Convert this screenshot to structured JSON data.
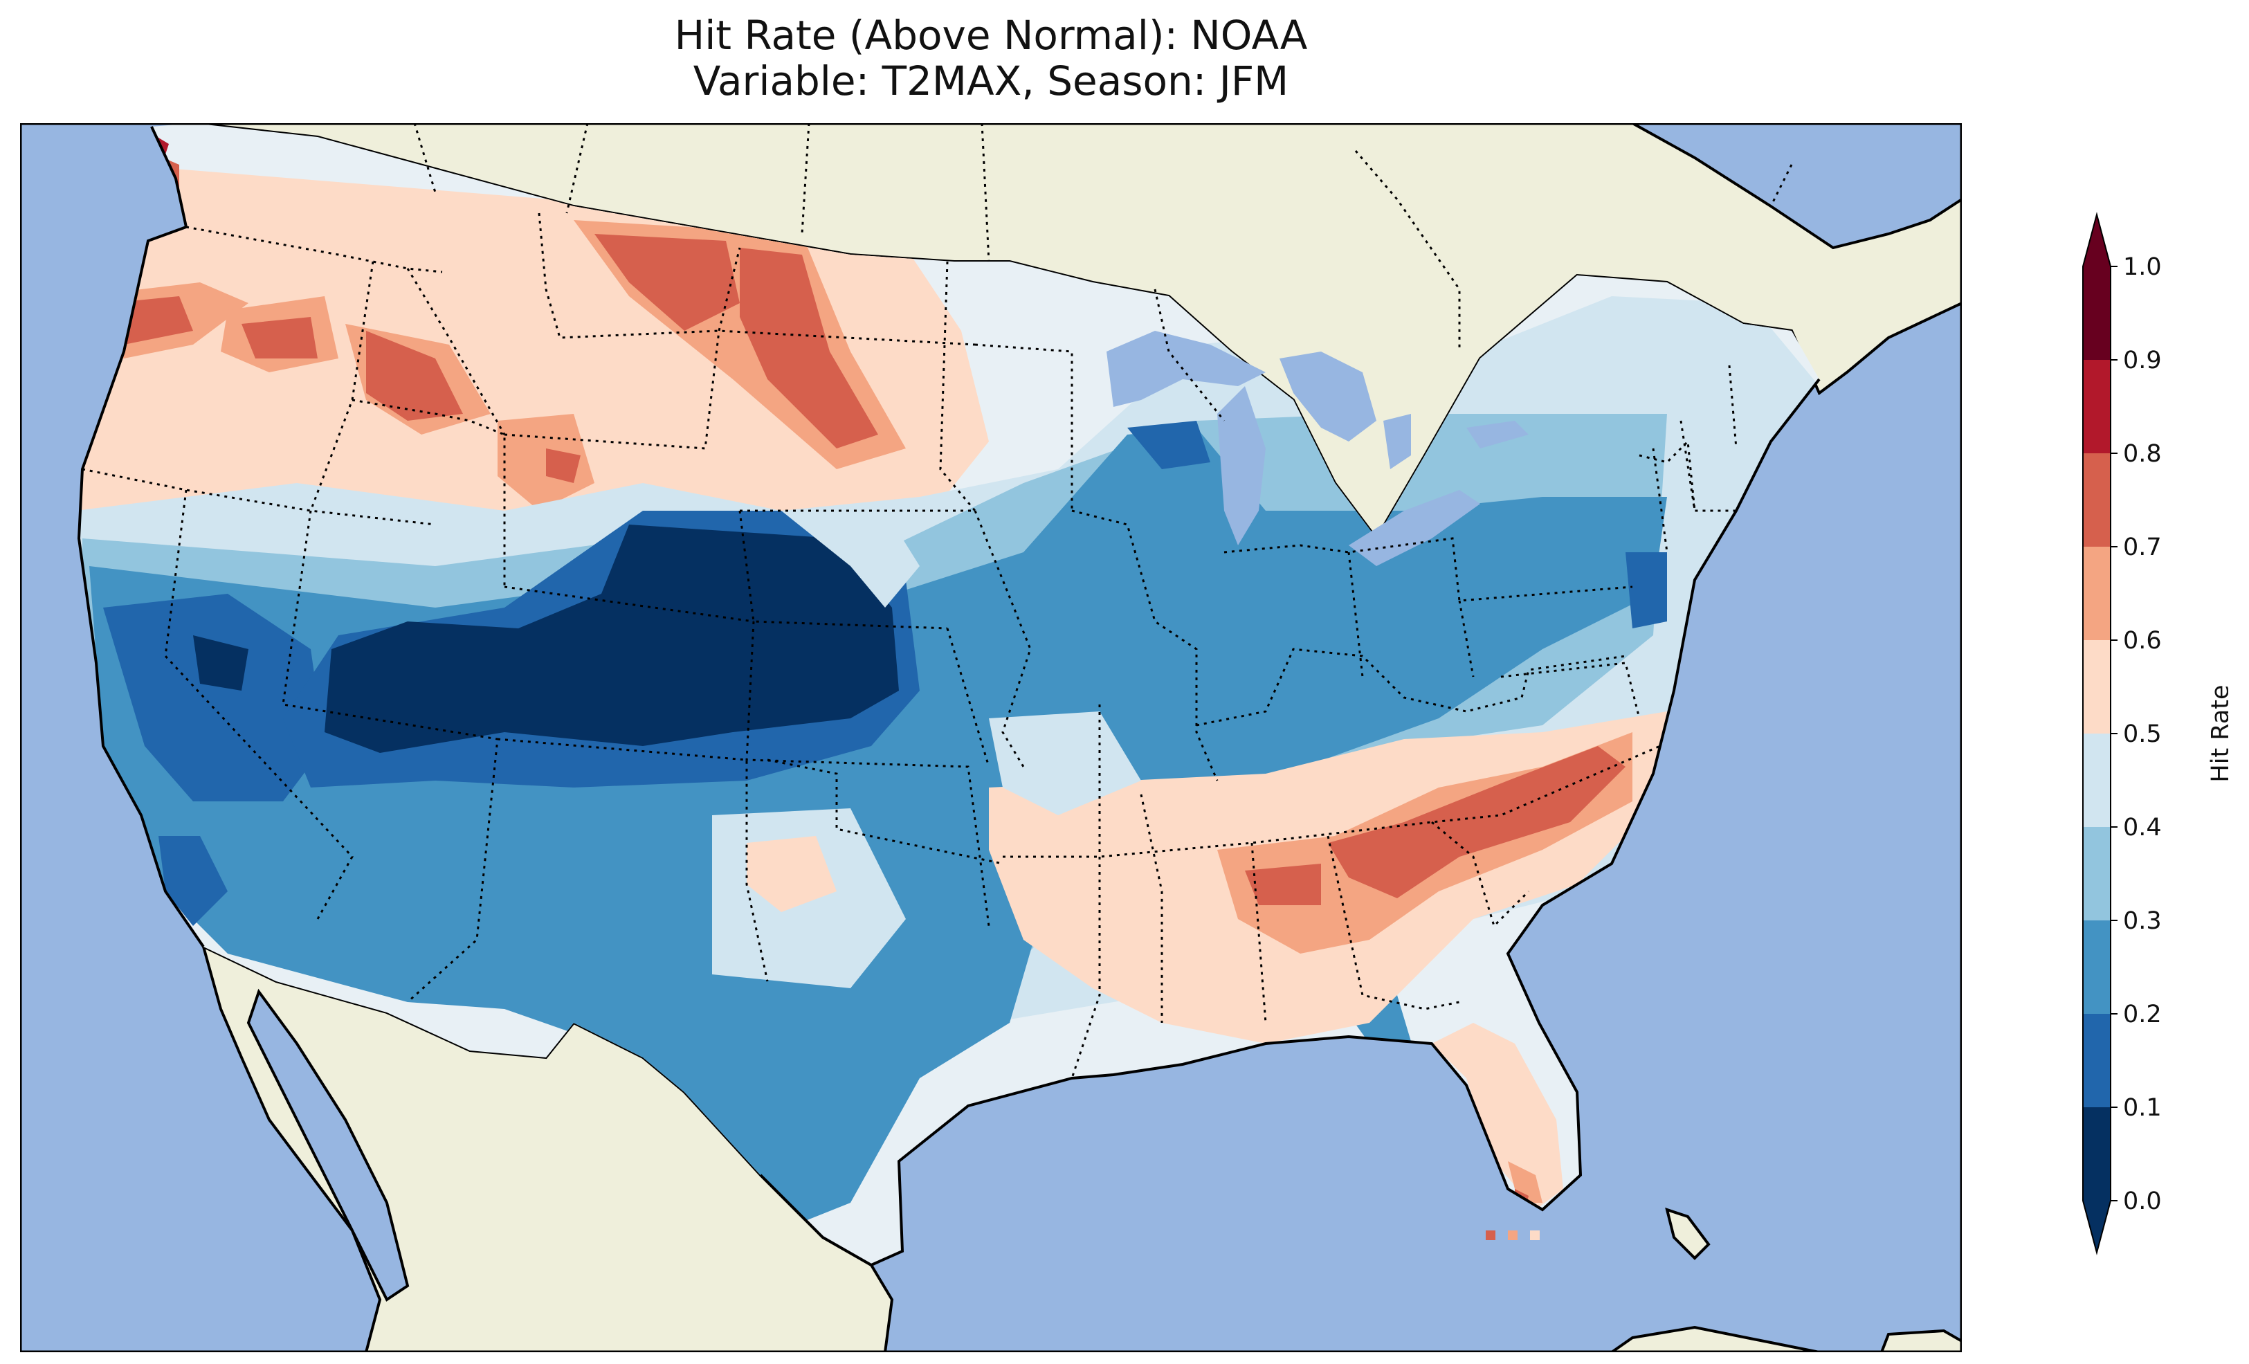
{
  "title_line1": "Hit Rate (Above Normal): NOAA",
  "title_line2": "Variable: T2MAX, Season: JFM",
  "colorbar": {
    "label": "Hit Rate",
    "ticks": [
      "0.0",
      "0.1",
      "0.2",
      "0.3",
      "0.4",
      "0.5",
      "0.6",
      "0.7",
      "0.8",
      "0.9",
      "1.0"
    ],
    "colors": [
      "#053061",
      "#2166ac",
      "#4393c3",
      "#92c5de",
      "#d1e5f0",
      "#fddbc7",
      "#f4a582",
      "#d6604d",
      "#b2182b",
      "#67001f"
    ],
    "extend": "both"
  },
  "map": {
    "ocean_color": "#97b6e1",
    "land_color": "#efefdb",
    "region": "Contiguous United States",
    "field_summary": [
      {
        "region": "Pacific Northwest / Northern Rockies",
        "range": "0.5-0.8"
      },
      {
        "region": "Colorado / Utah / Kansas",
        "range": "0.0-0.1"
      },
      {
        "region": "Southwest / Texas / Midwest",
        "range": "0.2-0.3"
      },
      {
        "region": "Carolinas / Georgia",
        "range": "0.6-0.8"
      },
      {
        "region": "Florida peninsula",
        "range": "0.5-0.7"
      }
    ]
  }
}
